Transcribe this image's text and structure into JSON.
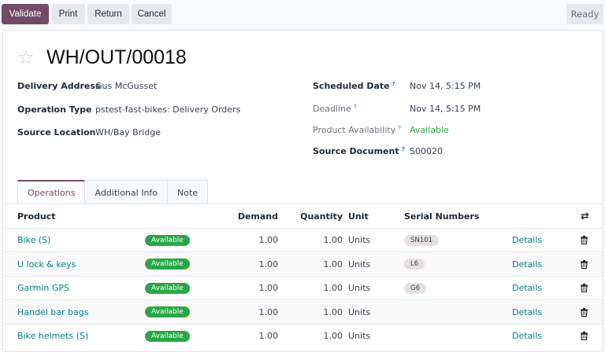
{
  "toolbar": {
    "validate": "Validate",
    "print": "Print",
    "return": "Return",
    "cancel": "Cancel",
    "status": "Ready"
  },
  "record": {
    "title": "WH/OUT/00018"
  },
  "fields_left": [
    {
      "label": "Delivery Address",
      "value": "Gus McGusset"
    },
    {
      "label": "Operation Type",
      "value": "pstest-fast-bikes: Delivery Orders"
    },
    {
      "label": "Source Location",
      "value": "WH/Bay Bridge"
    }
  ],
  "fields_right": [
    {
      "label": "Scheduled Date",
      "help": "?",
      "value": "Nov 14, 5:15 PM"
    },
    {
      "label": "Deadline",
      "help": "?",
      "value": "Nov 14, 5:15 PM"
    },
    {
      "label": "Product Availability",
      "help": "?",
      "value": "Available"
    },
    {
      "label": "Source Document",
      "help": "?",
      "value": "S00020"
    }
  ],
  "tabs": [
    {
      "label": "Operations",
      "active": true
    },
    {
      "label": "Additional Info"
    },
    {
      "label": "Note"
    }
  ],
  "table": {
    "headers": {
      "product": "Product",
      "demand": "Demand",
      "quantity": "Quantity",
      "unit": "Unit",
      "serial": "Serial Numbers"
    },
    "rows": [
      {
        "product": "Bike (S)",
        "status": "Available",
        "demand": "1.00",
        "quantity": "1.00",
        "unit": "Units",
        "serial": "SN101",
        "details": "Details"
      },
      {
        "product": "U lock & keys",
        "status": "Available",
        "demand": "1.00",
        "quantity": "1.00",
        "unit": "Units",
        "serial": "L6",
        "details": "Details"
      },
      {
        "product": "Garmin GPS",
        "status": "Available",
        "demand": "1.00",
        "quantity": "1.00",
        "unit": "Units",
        "serial": "G6",
        "details": "Details"
      },
      {
        "product": "Handel bar bags",
        "status": "Available",
        "demand": "1.00",
        "quantity": "1.00",
        "unit": "Units",
        "serial": "",
        "details": "Details"
      },
      {
        "product": "Bike helmets (S)",
        "status": "Available",
        "demand": "1.00",
        "quantity": "1.00",
        "unit": "Units",
        "serial": "",
        "details": "Details"
      }
    ]
  },
  "colors": {
    "primary": "#714b67",
    "link": "#017e84",
    "available": "#28a745"
  }
}
